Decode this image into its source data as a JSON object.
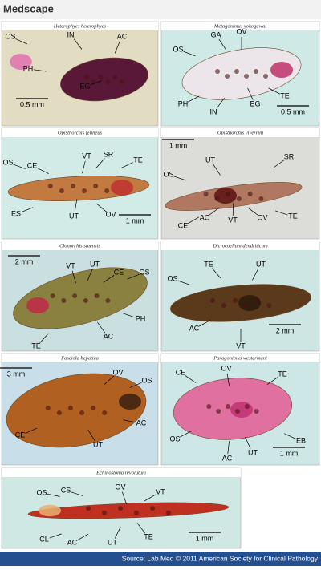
{
  "header": {
    "logo": "Medscape"
  },
  "panels": [
    {
      "title": "Heterophyes heterophyes",
      "labels": [
        "OS",
        "IN",
        "AC",
        "PH",
        "EG"
      ],
      "scale": "0.5 mm"
    },
    {
      "title": "Metagonimus yokogawai",
      "labels": [
        "OS",
        "GA",
        "OV",
        "PH",
        "IN",
        "EG",
        "TE"
      ],
      "scale": "0.5 mm"
    },
    {
      "title": "Opisthorchis felineus",
      "labels": [
        "OS",
        "CE",
        "VT",
        "SR",
        "TE",
        "ES",
        "UT",
        "OV"
      ],
      "scale": "1 mm"
    },
    {
      "title": "Opisthorchis viverrini",
      "labels": [
        "UT",
        "SR",
        "OS",
        "CE",
        "AC",
        "VT",
        "OV",
        "TE"
      ],
      "scale": "1 mm"
    },
    {
      "title": "Clonorchis sinensis",
      "labels": [
        "VT",
        "UT",
        "CE",
        "OS",
        "PH",
        "AC",
        "TE"
      ],
      "scale": "2 mm"
    },
    {
      "title": "Dicrocoelium dendriticum",
      "labels": [
        "OS",
        "TE",
        "UT",
        "AC",
        "VT"
      ],
      "scale": "2 mm"
    },
    {
      "title": "Fasciola hepatica",
      "labels": [
        "OV",
        "OS",
        "CE",
        "AC",
        "UT"
      ],
      "scale": "3 mm"
    },
    {
      "title": "Paragonimus westermani",
      "labels": [
        "CE",
        "OV",
        "TE",
        "OS",
        "EB",
        "AC",
        "UT"
      ],
      "scale": "1 mm"
    },
    {
      "title": "Echinostoma revolutum",
      "labels": [
        "OS",
        "CS",
        "OV",
        "VT",
        "CL",
        "AC",
        "UT",
        "TE"
      ],
      "scale": "1 mm"
    }
  ],
  "footer": {
    "source": "Source: Lab Med © 2011 American Society for Clinical Pathology"
  }
}
